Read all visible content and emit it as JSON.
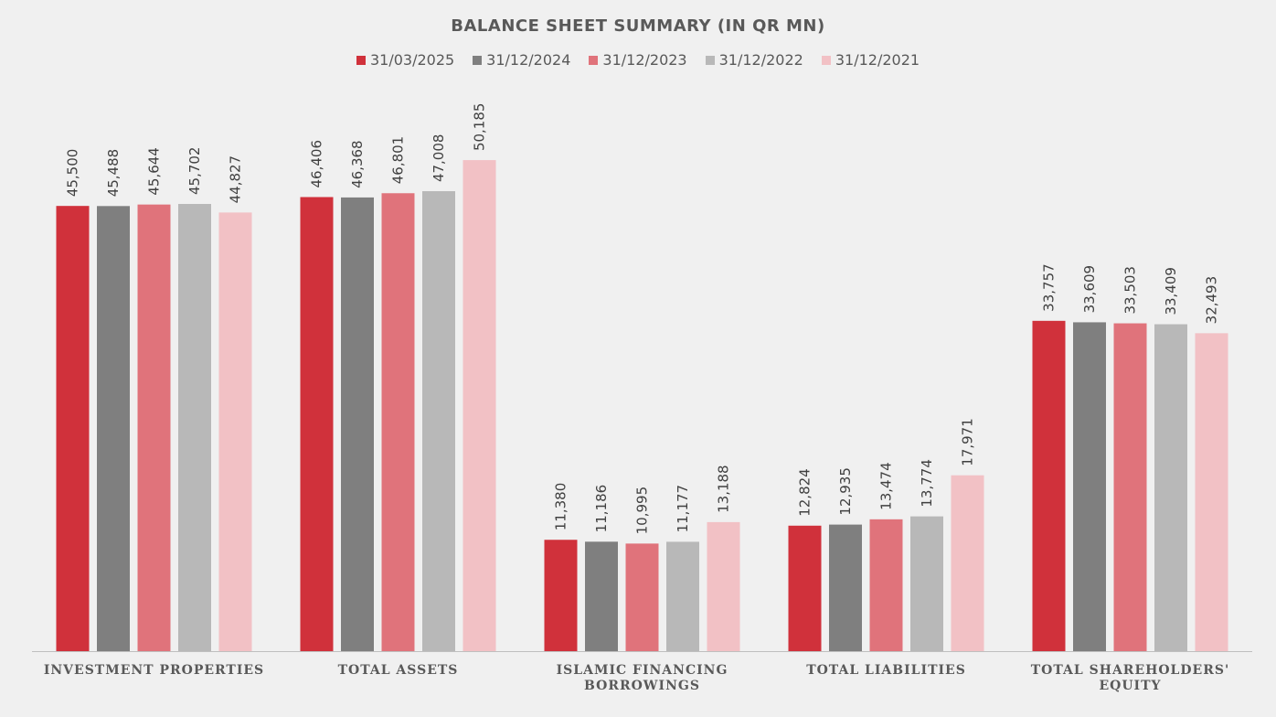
{
  "chart_data": {
    "type": "bar",
    "title": "BALANCE SHEET SUMMARY (IN QR MN)",
    "categories": [
      [
        "INVESTMENT PROPERTIES"
      ],
      [
        "TOTAL ASSETS"
      ],
      [
        "ISLAMIC FINANCING",
        "BORROWINGS"
      ],
      [
        "TOTAL LIABILITIES"
      ],
      [
        "TOTAL SHAREHOLDERS'",
        "EQUITY"
      ]
    ],
    "series": [
      {
        "name": "31/03/2025",
        "color": "#d0313b",
        "values": [
          45500,
          46406,
          11380,
          12824,
          33757
        ],
        "labels": [
          "45,500",
          "46,406",
          "11,380",
          "12,824",
          "33,757"
        ]
      },
      {
        "name": "31/12/2024",
        "color": "#7f7f7f",
        "values": [
          45488,
          46368,
          11186,
          12935,
          33609
        ],
        "labels": [
          "45,488",
          "46,368",
          "11,186",
          "12,935",
          "33,609"
        ]
      },
      {
        "name": "31/12/2023",
        "color": "#e0737b",
        "values": [
          45644,
          46801,
          10995,
          13474,
          33503
        ],
        "labels": [
          "45,644",
          "46,801",
          "10,995",
          "13,474",
          "33,503"
        ]
      },
      {
        "name": "31/12/2022",
        "color": "#b8b8b8",
        "values": [
          45702,
          47008,
          11177,
          13774,
          33409
        ],
        "labels": [
          "45,702",
          "47,008",
          "11,177",
          "13,774",
          "33,409"
        ]
      },
      {
        "name": "31/12/2021",
        "color": "#f2c1c5",
        "values": [
          44827,
          50185,
          13188,
          17971,
          32493
        ],
        "labels": [
          "44,827",
          "50,185",
          "13,188",
          "17,971",
          "32,493"
        ]
      }
    ],
    "ylim": [
      0,
      57200
    ],
    "grid": false,
    "legend_position": "top-center"
  }
}
